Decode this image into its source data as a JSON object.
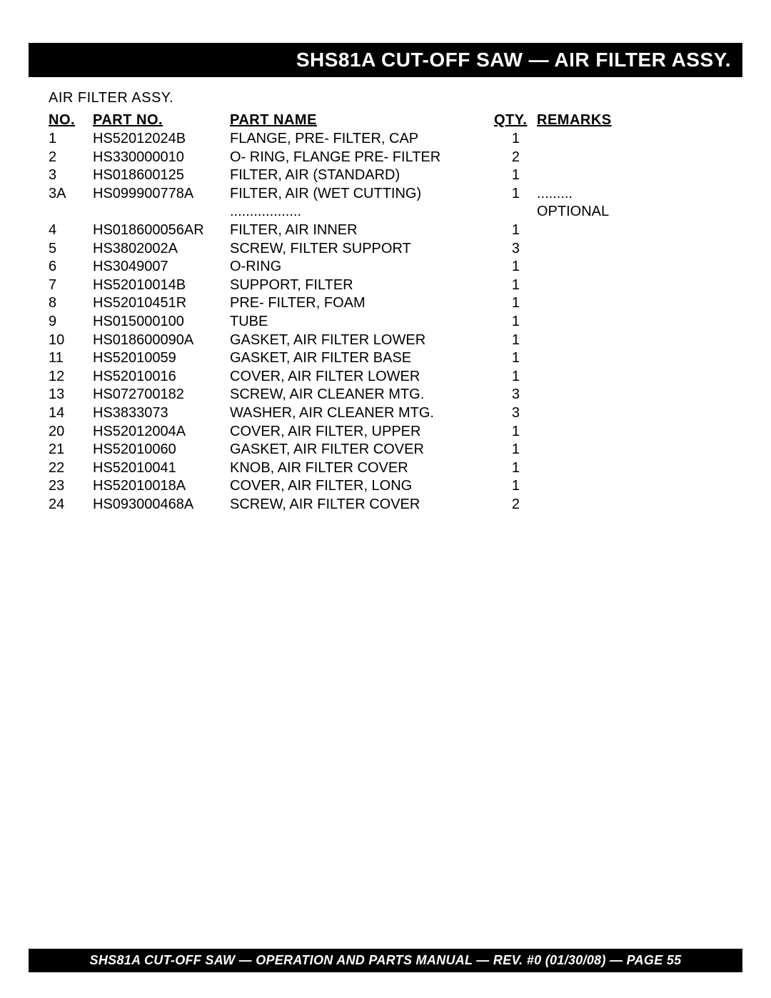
{
  "title": "SHS81A CUT-OFF SAW — AIR FILTER  ASSY.",
  "subtitle": "AIR FILTER ASSY.",
  "columns": {
    "no": "NO.",
    "partno": "PART NO.",
    "name": "PART NAME",
    "qty": "QTY.",
    "remarks": "REMARKS"
  },
  "rows": [
    {
      "no": "1",
      "partno": "HS52012024B",
      "name": "FLANGE, PRE- FILTER, CAP",
      "qty": "1",
      "remarks": ""
    },
    {
      "no": "2",
      "partno": "HS330000010",
      "name": "O- RING, FLANGE PRE- FILTER",
      "qty": "2",
      "remarks": ""
    },
    {
      "no": "3",
      "partno": "HS018600125",
      "name": "FILTER, AIR (STANDARD)",
      "qty": "1",
      "remarks": ""
    },
    {
      "no": "3A",
      "partno": "HS099900778A",
      "name": "FILTER, AIR (WET CUTTING)",
      "qty": "1",
      "remarks": "OPTIONAL",
      "leader": true
    },
    {
      "no": "4",
      "partno": "HS018600056AR",
      "name": "FILTER, AIR INNER",
      "qty": "1",
      "remarks": ""
    },
    {
      "no": "5",
      "partno": "HS3802002A",
      "name": "SCREW, FILTER SUPPORT",
      "qty": "3",
      "remarks": ""
    },
    {
      "no": "6",
      "partno": "HS3049007",
      "name": "O-RING",
      "qty": "1",
      "remarks": ""
    },
    {
      "no": "7",
      "partno": "HS52010014B",
      "name": "SUPPORT, FILTER",
      "qty": "1",
      "remarks": ""
    },
    {
      "no": "8",
      "partno": "HS52010451R",
      "name": "PRE- FILTER, FOAM",
      "qty": "1",
      "remarks": ""
    },
    {
      "no": "9",
      "partno": "HS015000100",
      "name": "TUBE",
      "qty": "1",
      "remarks": ""
    },
    {
      "no": "10",
      "partno": "HS018600090A",
      "name": "GASKET, AIR FILTER LOWER",
      "qty": "1",
      "remarks": ""
    },
    {
      "no": "11",
      "partno": "HS52010059",
      "name": "GASKET, AIR FILTER BASE",
      "qty": "1",
      "remarks": ""
    },
    {
      "no": "12",
      "partno": "HS52010016",
      "name": "COVER, AIR FILTER LOWER",
      "qty": "1",
      "remarks": ""
    },
    {
      "no": "13",
      "partno": "HS072700182",
      "name": "SCREW, AIR CLEANER MTG.",
      "qty": "3",
      "remarks": ""
    },
    {
      "no": "14",
      "partno": "HS3833073",
      "name": "WASHER, AIR CLEANER MTG.",
      "qty": "3",
      "remarks": ""
    },
    {
      "no": "20",
      "partno": "HS52012004A",
      "name": "COVER, AIR FILTER, UPPER",
      "qty": "1",
      "remarks": ""
    },
    {
      "no": "21",
      "partno": "HS52010060",
      "name": "GASKET, AIR FILTER COVER",
      "qty": "1",
      "remarks": ""
    },
    {
      "no": "22",
      "partno": "HS52010041",
      "name": "KNOB, AIR FILTER COVER",
      "qty": "1",
      "remarks": ""
    },
    {
      "no": "23",
      "partno": "HS52010018A",
      "name": "COVER, AIR FILTER, LONG",
      "qty": "1",
      "remarks": ""
    },
    {
      "no": "24",
      "partno": "HS093000468A",
      "name": "SCREW, AIR FILTER COVER",
      "qty": "2",
      "remarks": ""
    }
  ],
  "footer": "SHS81A CUT-OFF SAW  — OPERATION AND PARTS MANUAL — REV. #0 (01/30/08) — PAGE 55"
}
